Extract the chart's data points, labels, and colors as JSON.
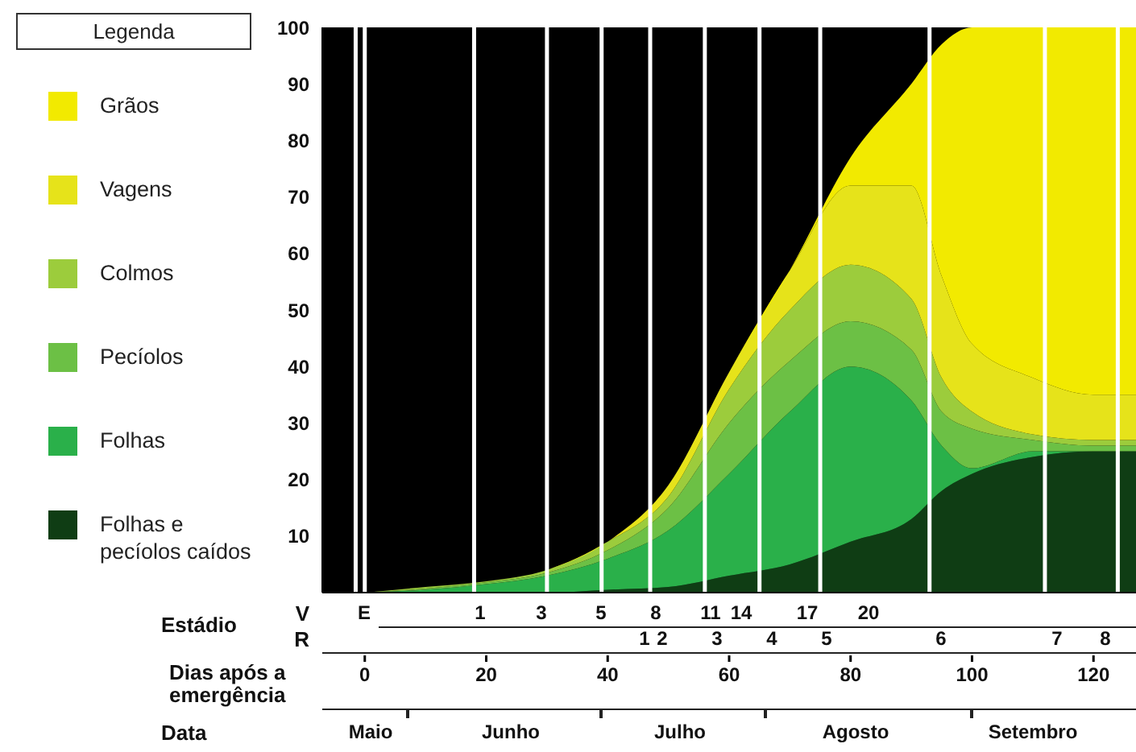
{
  "chart_data": {
    "type": "area",
    "stacked": true,
    "legend": "left",
    "legend_title": "Legenda",
    "x": [
      0,
      10,
      20,
      30,
      40,
      50,
      60,
      70,
      80,
      90,
      95,
      100,
      110,
      120,
      127
    ],
    "series": [
      {
        "name": "Folhas e pecíolos caídos",
        "color": "#0f3d14",
        "values": [
          0,
          0,
          0,
          0,
          0.5,
          1,
          3,
          5,
          9,
          13,
          18,
          21,
          24,
          25,
          25
        ]
      },
      {
        "name": "Folhas",
        "color": "#2ab04a",
        "values": [
          0,
          0.5,
          1.5,
          3,
          5.5,
          10,
          18,
          27,
          31,
          21,
          8,
          1,
          1,
          0,
          0
        ]
      },
      {
        "name": "Pecíolos",
        "color": "#6cc045",
        "values": [
          0,
          0.2,
          0.3,
          0.5,
          1.5,
          4,
          9,
          9,
          8,
          9,
          6,
          7,
          2,
          1,
          1
        ]
      },
      {
        "name": "Colmos",
        "color": "#9ccc3c",
        "values": [
          0,
          0.3,
          0.2,
          0.5,
          1.5,
          2,
          6,
          9,
          10,
          9,
          6,
          3,
          1,
          1,
          1
        ]
      },
      {
        "name": "Vagens",
        "color": "#e6e31a",
        "values": [
          0,
          0,
          0,
          0,
          0,
          2,
          3,
          7,
          14,
          20,
          18,
          12,
          10,
          8,
          8
        ]
      },
      {
        "name": "Grãos",
        "color": "#f2ea00",
        "values": [
          0,
          0,
          0,
          0,
          0,
          0,
          0,
          0,
          5,
          18,
          41,
          56,
          62,
          65,
          65
        ]
      }
    ],
    "ylim": [
      0,
      100
    ],
    "yticks": [
      10,
      20,
      30,
      40,
      50,
      60,
      70,
      80,
      90,
      100
    ],
    "xlim": [
      -7,
      127
    ],
    "xlabel": "Dias após a emergência",
    "xticks": [
      0,
      20,
      40,
      60,
      80,
      100,
      120
    ],
    "ref_lines": [
      {
        "axis": "x",
        "value": -1.5,
        "color": "#ffffff"
      },
      {
        "axis": "x",
        "value": 0,
        "color": "#ffffff"
      },
      {
        "axis": "x",
        "value": 18,
        "color": "#ffffff"
      },
      {
        "axis": "x",
        "value": 30,
        "color": "#ffffff"
      },
      {
        "axis": "x",
        "value": 39,
        "color": "#ffffff"
      },
      {
        "axis": "x",
        "value": 47,
        "color": "#ffffff"
      },
      {
        "axis": "x",
        "value": 56,
        "color": "#ffffff"
      },
      {
        "axis": "x",
        "value": 65,
        "color": "#ffffff"
      },
      {
        "axis": "x",
        "value": 75,
        "color": "#ffffff"
      },
      {
        "axis": "x",
        "value": 93,
        "color": "#ffffff"
      },
      {
        "axis": "x",
        "value": 112,
        "color": "#ffffff"
      },
      {
        "axis": "x",
        "value": 124,
        "color": "#ffffff"
      }
    ],
    "annotations": [
      "Estádio",
      "V",
      "E",
      "1",
      "3",
      "5",
      "8",
      "11",
      "14",
      "17",
      "20",
      "R",
      "1",
      "2",
      "3",
      "4",
      "5",
      "6",
      "7",
      "8",
      "Data",
      "Maio",
      "Junho",
      "Julho",
      "Agosto",
      "Setembro"
    ]
  }
}
